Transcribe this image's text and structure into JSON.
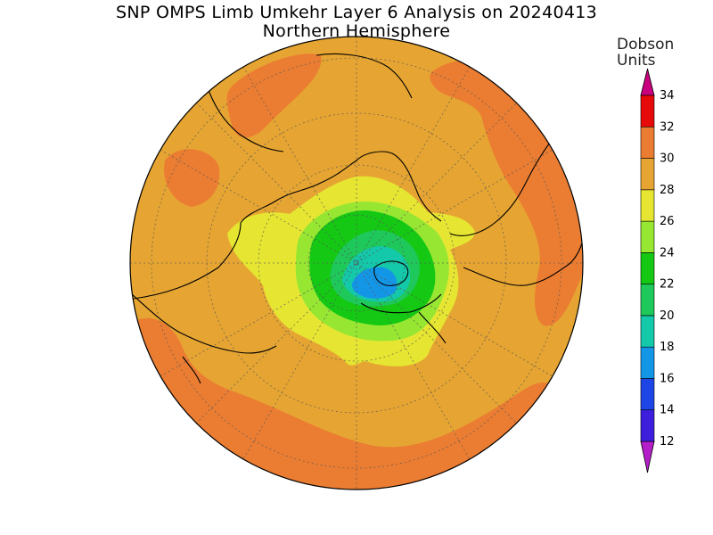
{
  "title": {
    "line1": "SNP OMPS Limb Umkehr Layer 6 Analysis on 20240413",
    "line2": "Northern Hemisphere"
  },
  "colorbar": {
    "units_line1": "Dobson",
    "units_line2": "Units",
    "levels": [
      {
        "value": "12",
        "color": "#7a1ee0"
      },
      {
        "value": "14",
        "color": "#3c1edc"
      },
      {
        "value": "16",
        "color": "#1e46e6"
      },
      {
        "value": "18",
        "color": "#1496e6"
      },
      {
        "value": "20",
        "color": "#14c8aa"
      },
      {
        "value": "22",
        "color": "#1ec85a"
      },
      {
        "value": "24",
        "color": "#14c814"
      },
      {
        "value": "26",
        "color": "#96e632"
      },
      {
        "value": "28",
        "color": "#e6e632"
      },
      {
        "value": "30",
        "color": "#e6a532"
      },
      {
        "value": "32",
        "color": "#eb7d32"
      },
      {
        "value": "34",
        "color": "#e60a0a"
      }
    ],
    "under_color": "#b41ec8",
    "over_color": "#c8007d"
  },
  "map": {
    "projection": "north-polar-stereographic",
    "background_color": "#e6a532",
    "field_range_du": [
      18,
      32
    ]
  }
}
